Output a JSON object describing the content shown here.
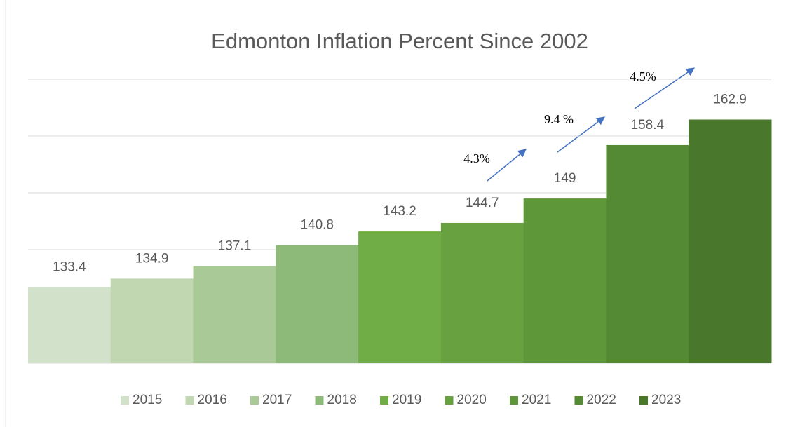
{
  "chart_data": {
    "type": "bar",
    "title": "Edmonton Inflation Percent Since 2002",
    "series": [
      {
        "name": "2015",
        "color": "#d2e1ca",
        "values": [
          133.4
        ]
      },
      {
        "name": "2016",
        "color": "#c0d7b2",
        "values": [
          134.9
        ]
      },
      {
        "name": "2017",
        "color": "#a9c997",
        "values": [
          137.1
        ]
      },
      {
        "name": "2018",
        "color": "#8dba78",
        "values": [
          140.8
        ]
      },
      {
        "name": "2019",
        "color": "#71ad47",
        "values": [
          143.2
        ]
      },
      {
        "name": "2020",
        "color": "#67a140",
        "values": [
          144.7
        ]
      },
      {
        "name": "2021",
        "color": "#5e973a",
        "values": [
          149
        ]
      },
      {
        "name": "2022",
        "color": "#548a33",
        "values": [
          158.4
        ]
      },
      {
        "name": "2023",
        "color": "#49782c",
        "values": [
          162.9
        ]
      }
    ],
    "annotations": [
      "4.3%",
      "9.4 %",
      "4.5%"
    ],
    "ylim": [
      120,
      170
    ],
    "yticks": [
      120,
      130,
      140,
      150,
      160,
      170
    ],
    "grid": true,
    "legend": "bottom"
  }
}
